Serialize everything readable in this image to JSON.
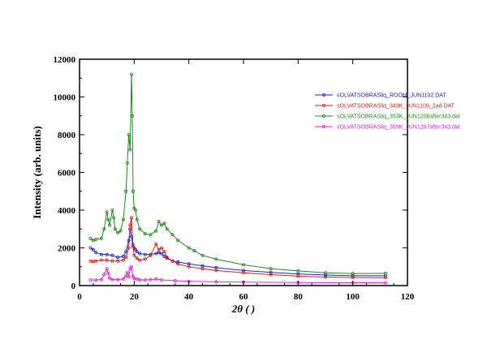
{
  "chart_data": {
    "type": "line",
    "xlabel": "2θ ( )",
    "ylabel": "Intensity (arb. units)",
    "xlim": [
      0,
      120
    ],
    "ylim": [
      0,
      12000
    ],
    "xticks": [
      0,
      20,
      40,
      60,
      80,
      100,
      120
    ],
    "yticks": [
      0,
      2000,
      4000,
      6000,
      8000,
      10000,
      12000
    ],
    "legend_position": "top-right",
    "grid": false,
    "series": [
      {
        "name": "sOLVATSOBRASliq_ROOM_JUN1102.DAT",
        "color": "#2222cc",
        "x": [
          4,
          5,
          6,
          8,
          10,
          12,
          14,
          16,
          17,
          18,
          18.5,
          19,
          19.5,
          20,
          20.5,
          21,
          22,
          24,
          26,
          28,
          29,
          30,
          31,
          32,
          34,
          36,
          40,
          45,
          50,
          60,
          70,
          80,
          90,
          100,
          112
        ],
        "y": [
          2000,
          1900,
          1750,
          1650,
          1650,
          1600,
          1500,
          1550,
          1800,
          2400,
          3000,
          2600,
          2100,
          2000,
          1900,
          1800,
          1700,
          1650,
          1650,
          1700,
          1750,
          1700,
          1550,
          1450,
          1300,
          1250,
          1150,
          1050,
          950,
          800,
          700,
          620,
          560,
          520,
          520
        ]
      },
      {
        "name": "sOLVATSOBRASliq_343K_JUN1109_2ad.DAT",
        "color": "#cc2222",
        "x": [
          4,
          5,
          6,
          8,
          10,
          12,
          14,
          16,
          17,
          18,
          18.5,
          19,
          19.5,
          20,
          21,
          22,
          24,
          26,
          28,
          29,
          30,
          31,
          32,
          34,
          36,
          40,
          45,
          50,
          60,
          70,
          80,
          90,
          100,
          112
        ],
        "y": [
          1300,
          1280,
          1300,
          1350,
          1350,
          1300,
          1300,
          1350,
          1500,
          2000,
          3200,
          3600,
          2200,
          1600,
          1450,
          1350,
          1400,
          1600,
          2200,
          1900,
          2000,
          1800,
          1500,
          1300,
          1150,
          1000,
          900,
          800,
          680,
          580,
          500,
          450,
          430,
          420
        ]
      },
      {
        "name": "sOLVATSOBRASliq_353K_JUN1206after343.dat",
        "color": "#228822",
        "x": [
          4,
          5,
          6,
          8,
          9,
          10,
          10.5,
          11,
          12,
          12.5,
          13,
          14,
          15,
          16,
          17,
          17.5,
          18,
          18.5,
          19,
          19.3,
          19.6,
          20,
          20.5,
          21,
          22,
          24,
          26,
          28,
          29,
          30,
          31,
          32,
          34,
          36,
          40,
          42,
          45,
          50,
          60,
          70,
          80,
          90,
          100,
          112
        ],
        "y": [
          2500,
          2400,
          2450,
          2500,
          3000,
          3900,
          3500,
          3200,
          4000,
          3600,
          3000,
          2800,
          2900,
          3500,
          5000,
          6500,
          8000,
          7200,
          11200,
          9000,
          5000,
          4100,
          4000,
          3500,
          3000,
          2750,
          2700,
          2900,
          3400,
          3200,
          3300,
          3000,
          2700,
          2400,
          2000,
          1850,
          1600,
          1400,
          1100,
          900,
          780,
          680,
          640,
          650
        ]
      },
      {
        "name": "sOLVATSOBRASliq_393K_JUN1207after343.dat",
        "color": "#dd22dd",
        "x": [
          4,
          6,
          8,
          9,
          10,
          10.5,
          11,
          12,
          14,
          16,
          17,
          17.5,
          18,
          18.5,
          19,
          19.5,
          20,
          21,
          22,
          24,
          26,
          28,
          30,
          35,
          40,
          50,
          60,
          80,
          100,
          112
        ],
        "y": [
          300,
          290,
          320,
          600,
          900,
          650,
          400,
          320,
          320,
          350,
          500,
          700,
          450,
          900,
          1000,
          500,
          380,
          350,
          300,
          300,
          310,
          350,
          300,
          260,
          230,
          200,
          180,
          160,
          150,
          150
        ]
      }
    ]
  }
}
